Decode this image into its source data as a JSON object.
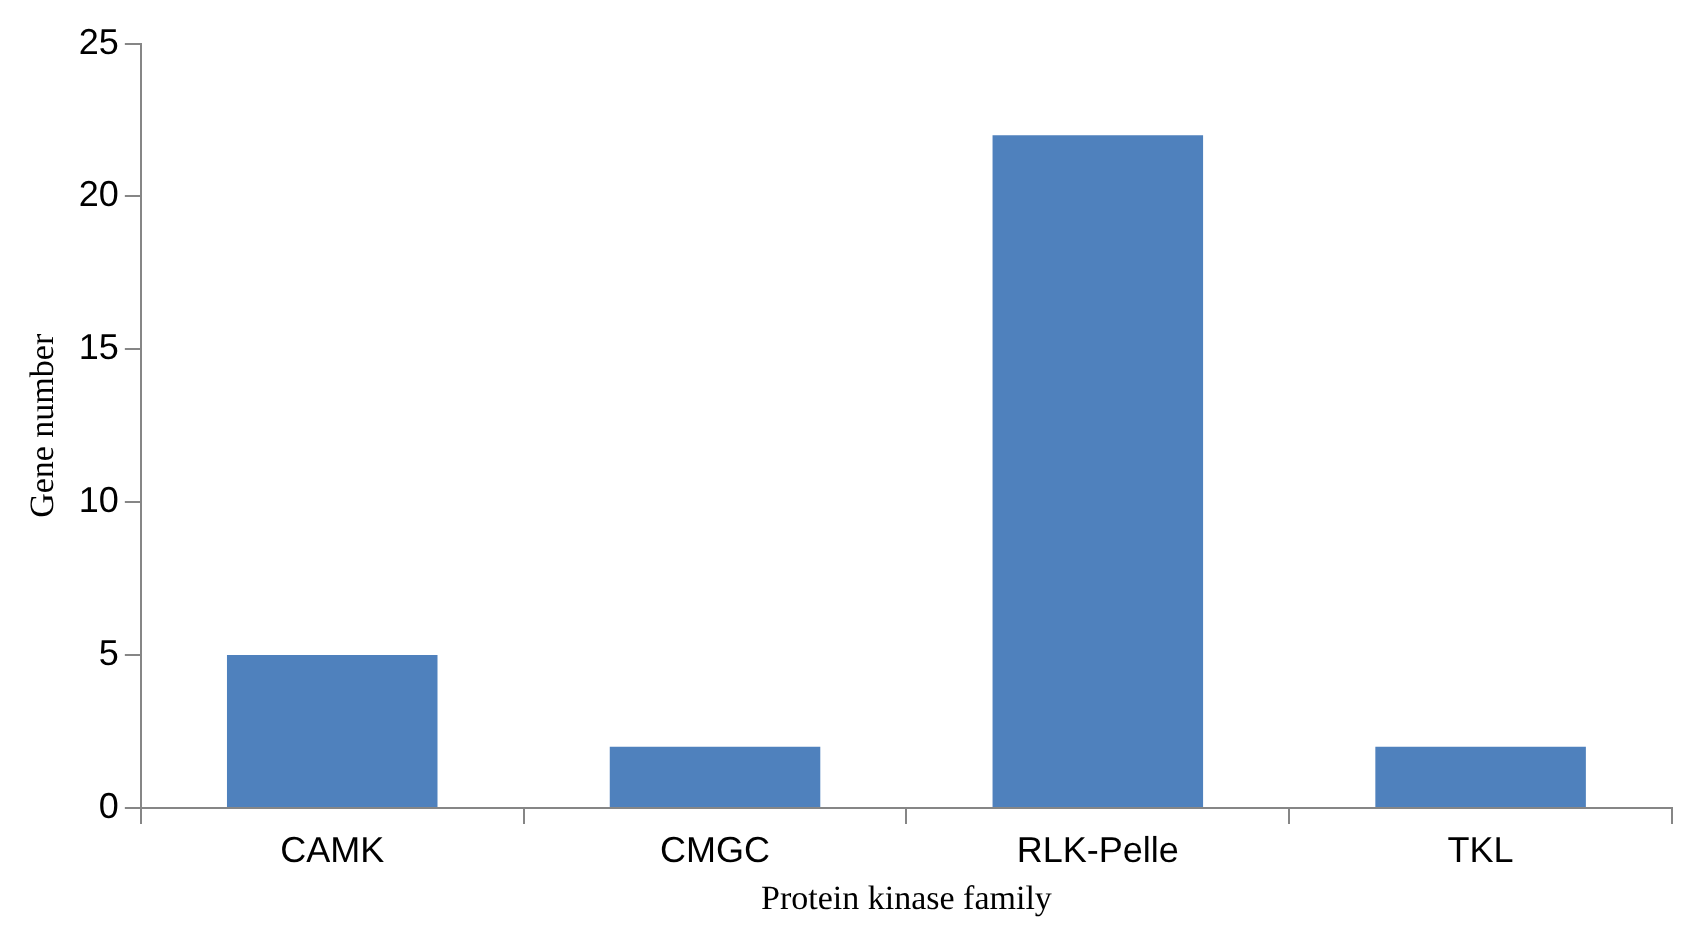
{
  "chart_data": {
    "type": "bar",
    "xlabel": "Protein kinase family",
    "ylabel": "Gene number",
    "categories": [
      "CAMK",
      "CMGC",
      "RLK-Pelle",
      "TKL"
    ],
    "values": [
      5,
      2,
      22,
      2
    ],
    "color": "#4f81bd",
    "ylim": [
      0,
      25
    ],
    "yticks": [
      0,
      5,
      10,
      15,
      20,
      25
    ],
    "grid": false,
    "legend": false
  }
}
